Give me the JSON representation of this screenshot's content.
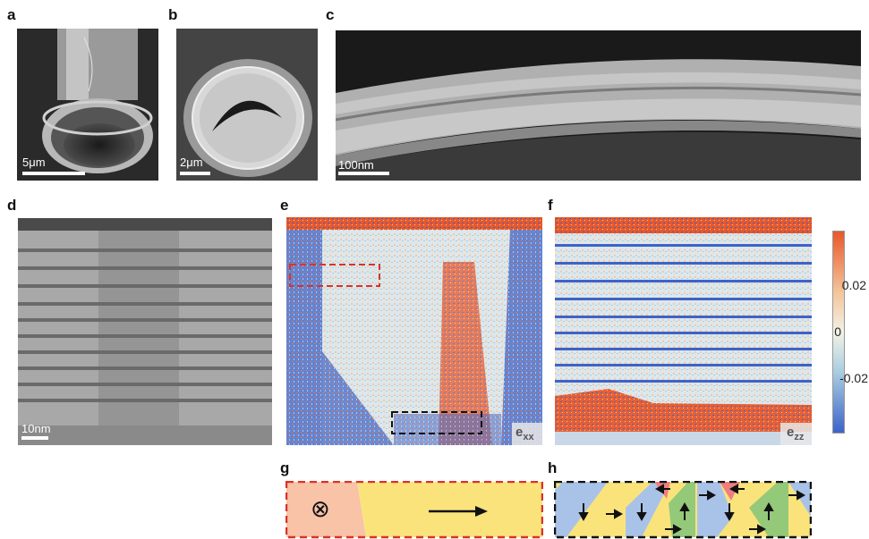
{
  "panels": {
    "a": {
      "letter": "a",
      "scale_label": "5μm"
    },
    "b": {
      "letter": "b",
      "scale_label": "2μm"
    },
    "c": {
      "letter": "c",
      "scale_label": "100nm"
    },
    "d": {
      "letter": "d",
      "scale_label": "10nm"
    },
    "e": {
      "letter": "e",
      "map_label_main": "e",
      "map_label_sub": "xx"
    },
    "f": {
      "letter": "f",
      "map_label_main": "e",
      "map_label_sub": "zz"
    },
    "g": {
      "letter": "g",
      "into_page_symbol": "⊗"
    },
    "h": {
      "letter": "h"
    }
  },
  "colorbar": {
    "ticks": [
      "0.02",
      "0",
      "-0.02"
    ],
    "colors": {
      "high": "#e8582a",
      "mid": "#f2f2e6",
      "low": "#3d63c9"
    }
  },
  "colors": {
    "domain_pink": "#f8c3a6",
    "domain_yellow": "#fbe37c",
    "domain_blue": "#a9c3e8",
    "domain_green": "#94c97a",
    "domain_red": "#ef7f7f",
    "dash_red": "#d9322b",
    "dash_black": "#111111"
  }
}
